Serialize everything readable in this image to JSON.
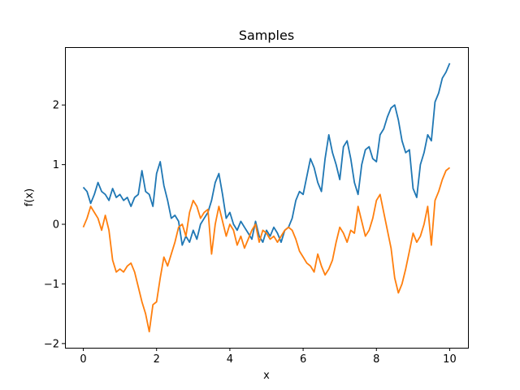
{
  "chart_data": {
    "type": "line",
    "title": "Samples",
    "xlabel": "x",
    "ylabel": "f(x)",
    "xlim": [
      -0.5,
      10.5
    ],
    "ylim": [
      -2.07,
      2.97
    ],
    "xticks": [
      0,
      2,
      4,
      6,
      8,
      10
    ],
    "xtick_labels": [
      "0",
      "2",
      "4",
      "6",
      "8",
      "10"
    ],
    "yticks": [
      -2,
      -1,
      0,
      1,
      2
    ],
    "ytick_labels": [
      "−2",
      "−1",
      "0",
      "1",
      "2"
    ],
    "grid": false,
    "legend": "none",
    "series": [
      {
        "color": "#1f77b4",
        "x": [
          0,
          0.1,
          0.2,
          0.3,
          0.4,
          0.5,
          0.6,
          0.7,
          0.8,
          0.9,
          1.0,
          1.1,
          1.2,
          1.3,
          1.4,
          1.5,
          1.6,
          1.7,
          1.8,
          1.9,
          2.0,
          2.1,
          2.2,
          2.3,
          2.4,
          2.5,
          2.6,
          2.7,
          2.8,
          2.9,
          3.0,
          3.1,
          3.2,
          3.3,
          3.4,
          3.5,
          3.6,
          3.7,
          3.8,
          3.9,
          4.0,
          4.1,
          4.2,
          4.3,
          4.4,
          4.5,
          4.6,
          4.7,
          4.8,
          4.9,
          5.0,
          5.1,
          5.2,
          5.3,
          5.4,
          5.5,
          5.6,
          5.7,
          5.8,
          5.9,
          6.0,
          6.1,
          6.2,
          6.3,
          6.4,
          6.5,
          6.6,
          6.7,
          6.8,
          6.9,
          7.0,
          7.1,
          7.2,
          7.3,
          7.4,
          7.5,
          7.6,
          7.7,
          7.8,
          7.9,
          8.0,
          8.1,
          8.2,
          8.3,
          8.4,
          8.5,
          8.6,
          8.7,
          8.8,
          8.9,
          9.0,
          9.1,
          9.2,
          9.3,
          9.4,
          9.5,
          9.6,
          9.7,
          9.8,
          9.9,
          10.0
        ],
        "y": [
          0.62,
          0.55,
          0.35,
          0.5,
          0.7,
          0.55,
          0.5,
          0.4,
          0.6,
          0.45,
          0.5,
          0.4,
          0.45,
          0.3,
          0.45,
          0.5,
          0.9,
          0.55,
          0.5,
          0.3,
          0.85,
          1.05,
          0.65,
          0.4,
          0.1,
          0.15,
          0.05,
          -0.35,
          -0.2,
          -0.3,
          -0.1,
          -0.25,
          0.0,
          0.1,
          0.2,
          0.4,
          0.7,
          0.85,
          0.5,
          0.1,
          0.2,
          0.0,
          -0.1,
          0.05,
          -0.05,
          -0.15,
          -0.25,
          0.05,
          -0.2,
          -0.3,
          -0.1,
          -0.2,
          -0.05,
          -0.15,
          -0.3,
          -0.1,
          -0.05,
          0.1,
          0.4,
          0.55,
          0.5,
          0.8,
          1.1,
          0.95,
          0.7,
          0.55,
          1.1,
          1.5,
          1.2,
          1.0,
          0.75,
          1.3,
          1.4,
          1.1,
          0.7,
          0.5,
          1.0,
          1.25,
          1.3,
          1.1,
          1.05,
          1.5,
          1.6,
          1.8,
          1.95,
          2.0,
          1.75,
          1.4,
          1.2,
          1.25,
          0.6,
          0.45,
          1.0,
          1.2,
          1.5,
          1.4,
          2.05,
          2.2,
          2.45,
          2.55,
          2.7
        ]
      },
      {
        "color": "#ff7f0e",
        "x": [
          0,
          0.1,
          0.2,
          0.3,
          0.4,
          0.5,
          0.6,
          0.7,
          0.8,
          0.9,
          1.0,
          1.1,
          1.2,
          1.3,
          1.4,
          1.5,
          1.6,
          1.7,
          1.8,
          1.9,
          2.0,
          2.1,
          2.2,
          2.3,
          2.4,
          2.5,
          2.6,
          2.7,
          2.8,
          2.9,
          3.0,
          3.1,
          3.2,
          3.3,
          3.4,
          3.5,
          3.6,
          3.7,
          3.8,
          3.9,
          4.0,
          4.1,
          4.2,
          4.3,
          4.4,
          4.5,
          4.6,
          4.7,
          4.8,
          4.9,
          5.0,
          5.1,
          5.2,
          5.3,
          5.4,
          5.5,
          5.6,
          5.7,
          5.8,
          5.9,
          6.0,
          6.1,
          6.2,
          6.3,
          6.4,
          6.5,
          6.6,
          6.7,
          6.8,
          6.9,
          7.0,
          7.1,
          7.2,
          7.3,
          7.4,
          7.5,
          7.6,
          7.7,
          7.8,
          7.9,
          8.0,
          8.1,
          8.2,
          8.3,
          8.4,
          8.5,
          8.6,
          8.7,
          8.8,
          8.9,
          9.0,
          9.1,
          9.2,
          9.3,
          9.4,
          9.5,
          9.6,
          9.7,
          9.8,
          9.9,
          10.0
        ],
        "y": [
          -0.05,
          0.1,
          0.3,
          0.2,
          0.1,
          -0.1,
          0.15,
          -0.1,
          -0.6,
          -0.8,
          -0.75,
          -0.8,
          -0.7,
          -0.65,
          -0.8,
          -1.05,
          -1.3,
          -1.5,
          -1.8,
          -1.35,
          -1.3,
          -0.9,
          -0.55,
          -0.7,
          -0.5,
          -0.3,
          -0.05,
          0.0,
          -0.2,
          0.2,
          0.4,
          0.3,
          0.1,
          0.2,
          0.25,
          -0.5,
          0.0,
          0.3,
          0.05,
          -0.2,
          0.0,
          -0.1,
          -0.35,
          -0.2,
          -0.4,
          -0.25,
          -0.1,
          0.0,
          -0.3,
          -0.1,
          -0.15,
          -0.25,
          -0.2,
          -0.3,
          -0.2,
          -0.1,
          -0.05,
          -0.1,
          -0.25,
          -0.45,
          -0.55,
          -0.65,
          -0.7,
          -0.8,
          -0.5,
          -0.7,
          -0.85,
          -0.75,
          -0.6,
          -0.3,
          -0.05,
          -0.15,
          -0.3,
          -0.1,
          -0.15,
          0.3,
          0.05,
          -0.2,
          -0.1,
          0.1,
          0.4,
          0.5,
          0.2,
          -0.1,
          -0.4,
          -0.9,
          -1.15,
          -1.0,
          -0.75,
          -0.45,
          -0.15,
          -0.3,
          -0.2,
          0.0,
          0.3,
          -0.35,
          0.4,
          0.55,
          0.75,
          0.9,
          0.95
        ]
      }
    ]
  }
}
